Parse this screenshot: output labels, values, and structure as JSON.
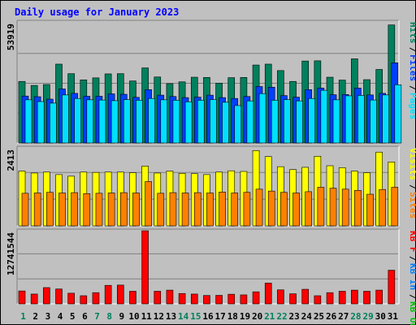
{
  "chart_data": [
    {
      "type": "bar",
      "title": "Daily usage for January 2023",
      "max_label": "53919",
      "legend": [
        {
          "text": "Hits",
          "color": "#00805c"
        },
        {
          "text": "Files",
          "color": "#0040ff"
        },
        {
          "text": "Pages",
          "color": "#00e0ff"
        }
      ],
      "ylim": [
        0,
        53919
      ],
      "categories": [
        "1",
        "2",
        "3",
        "4",
        "5",
        "6",
        "7",
        "8",
        "9",
        "10",
        "11",
        "12",
        "13",
        "14",
        "15",
        "16",
        "17",
        "18",
        "19",
        "20",
        "21",
        "22",
        "23",
        "24",
        "25",
        "26",
        "27",
        "28",
        "29",
        "30",
        "31"
      ],
      "weekend_days": [
        "1",
        "7",
        "8",
        "14",
        "15",
        "21",
        "22",
        "28",
        "29"
      ],
      "series": [
        {
          "name": "Hits",
          "color": "#00805c",
          "values": [
            27800,
            26000,
            26400,
            35600,
            31300,
            28500,
            29400,
            31200,
            31300,
            28000,
            33900,
            29800,
            26800,
            27600,
            29700,
            29600,
            27000,
            29500,
            29600,
            35200,
            35600,
            32700,
            27800,
            37000,
            37100,
            29700,
            28400,
            38000,
            28600,
            33200,
            53300
          ]
        },
        {
          "name": "Files",
          "color": "#0040ff",
          "values": [
            21200,
            20900,
            19800,
            24400,
            22400,
            21100,
            21100,
            22200,
            22000,
            20600,
            24100,
            21600,
            21000,
            20500,
            20700,
            21600,
            20500,
            20100,
            21000,
            25500,
            25200,
            21400,
            20700,
            24100,
            24800,
            21800,
            21900,
            24800,
            21700,
            22400,
            36200
          ]
        },
        {
          "name": "Pages",
          "color": "#00e0ff",
          "values": [
            19500,
            18700,
            18000,
            21700,
            20100,
            19500,
            19400,
            19100,
            19600,
            19300,
            20100,
            19500,
            19300,
            18600,
            19300,
            19600,
            18400,
            16900,
            19000,
            22300,
            19300,
            19600,
            19000,
            20100,
            23800,
            19500,
            21300,
            21500,
            19400,
            21700,
            26300
          ]
        }
      ]
    },
    {
      "type": "bar",
      "max_label": "2413",
      "legend": [
        {
          "text": "Visits",
          "color": "#ffff00"
        },
        {
          "text": "Sites",
          "color": "#ff8000"
        }
      ],
      "ylim": [
        0,
        2413
      ],
      "categories": [
        "1",
        "2",
        "3",
        "4",
        "5",
        "6",
        "7",
        "8",
        "9",
        "10",
        "11",
        "12",
        "13",
        "14",
        "15",
        "16",
        "17",
        "18",
        "19",
        "20",
        "21",
        "22",
        "23",
        "24",
        "25",
        "26",
        "27",
        "28",
        "29",
        "30",
        "31"
      ],
      "series": [
        {
          "name": "Visits",
          "color": "#ffff00",
          "values": [
            1730,
            1670,
            1700,
            1620,
            1570,
            1700,
            1690,
            1700,
            1700,
            1680,
            1890,
            1670,
            1730,
            1660,
            1650,
            1620,
            1700,
            1740,
            1720,
            2380,
            2190,
            1870,
            1780,
            1850,
            2200,
            1900,
            1840,
            1730,
            1680,
            2330,
            2020
          ]
        },
        {
          "name": "Sites",
          "color": "#ff8000",
          "values": [
            1030,
            1040,
            1060,
            1040,
            1050,
            1020,
            1030,
            1040,
            1050,
            1040,
            1400,
            1030,
            1050,
            1040,
            1050,
            1040,
            1070,
            1040,
            1060,
            1160,
            1100,
            1060,
            1040,
            1080,
            1220,
            1190,
            1160,
            1120,
            1000,
            1150,
            1220
          ]
        }
      ]
    },
    {
      "type": "bar",
      "max_label": "12741544",
      "legend": [
        {
          "text": "KB F",
          "color": "#ff0000"
        },
        {
          "text": "KB In",
          "color": "#0080ff"
        },
        {
          "text": "KB Out",
          "color": "#00c000"
        }
      ],
      "ylim": [
        0,
        12741544
      ],
      "categories": [
        "1",
        "2",
        "3",
        "4",
        "5",
        "6",
        "7",
        "8",
        "9",
        "10",
        "11",
        "12",
        "13",
        "14",
        "15",
        "16",
        "17",
        "18",
        "19",
        "20",
        "21",
        "22",
        "23",
        "24",
        "25",
        "26",
        "27",
        "28",
        "29",
        "30",
        "31"
      ],
      "series": [
        {
          "name": "KB F",
          "color": "#ff0000",
          "values": [
            2300000,
            1750000,
            2900000,
            2650000,
            1900000,
            1450000,
            2000000,
            3300000,
            3350000,
            2250000,
            13100000,
            2250000,
            2450000,
            1850000,
            1750000,
            1500000,
            1520000,
            1720000,
            1600000,
            2150000,
            3700000,
            2500000,
            1800000,
            2600000,
            1450000,
            2000000,
            2250000,
            2450000,
            2250000,
            2450000,
            6000000
          ]
        }
      ]
    }
  ]
}
